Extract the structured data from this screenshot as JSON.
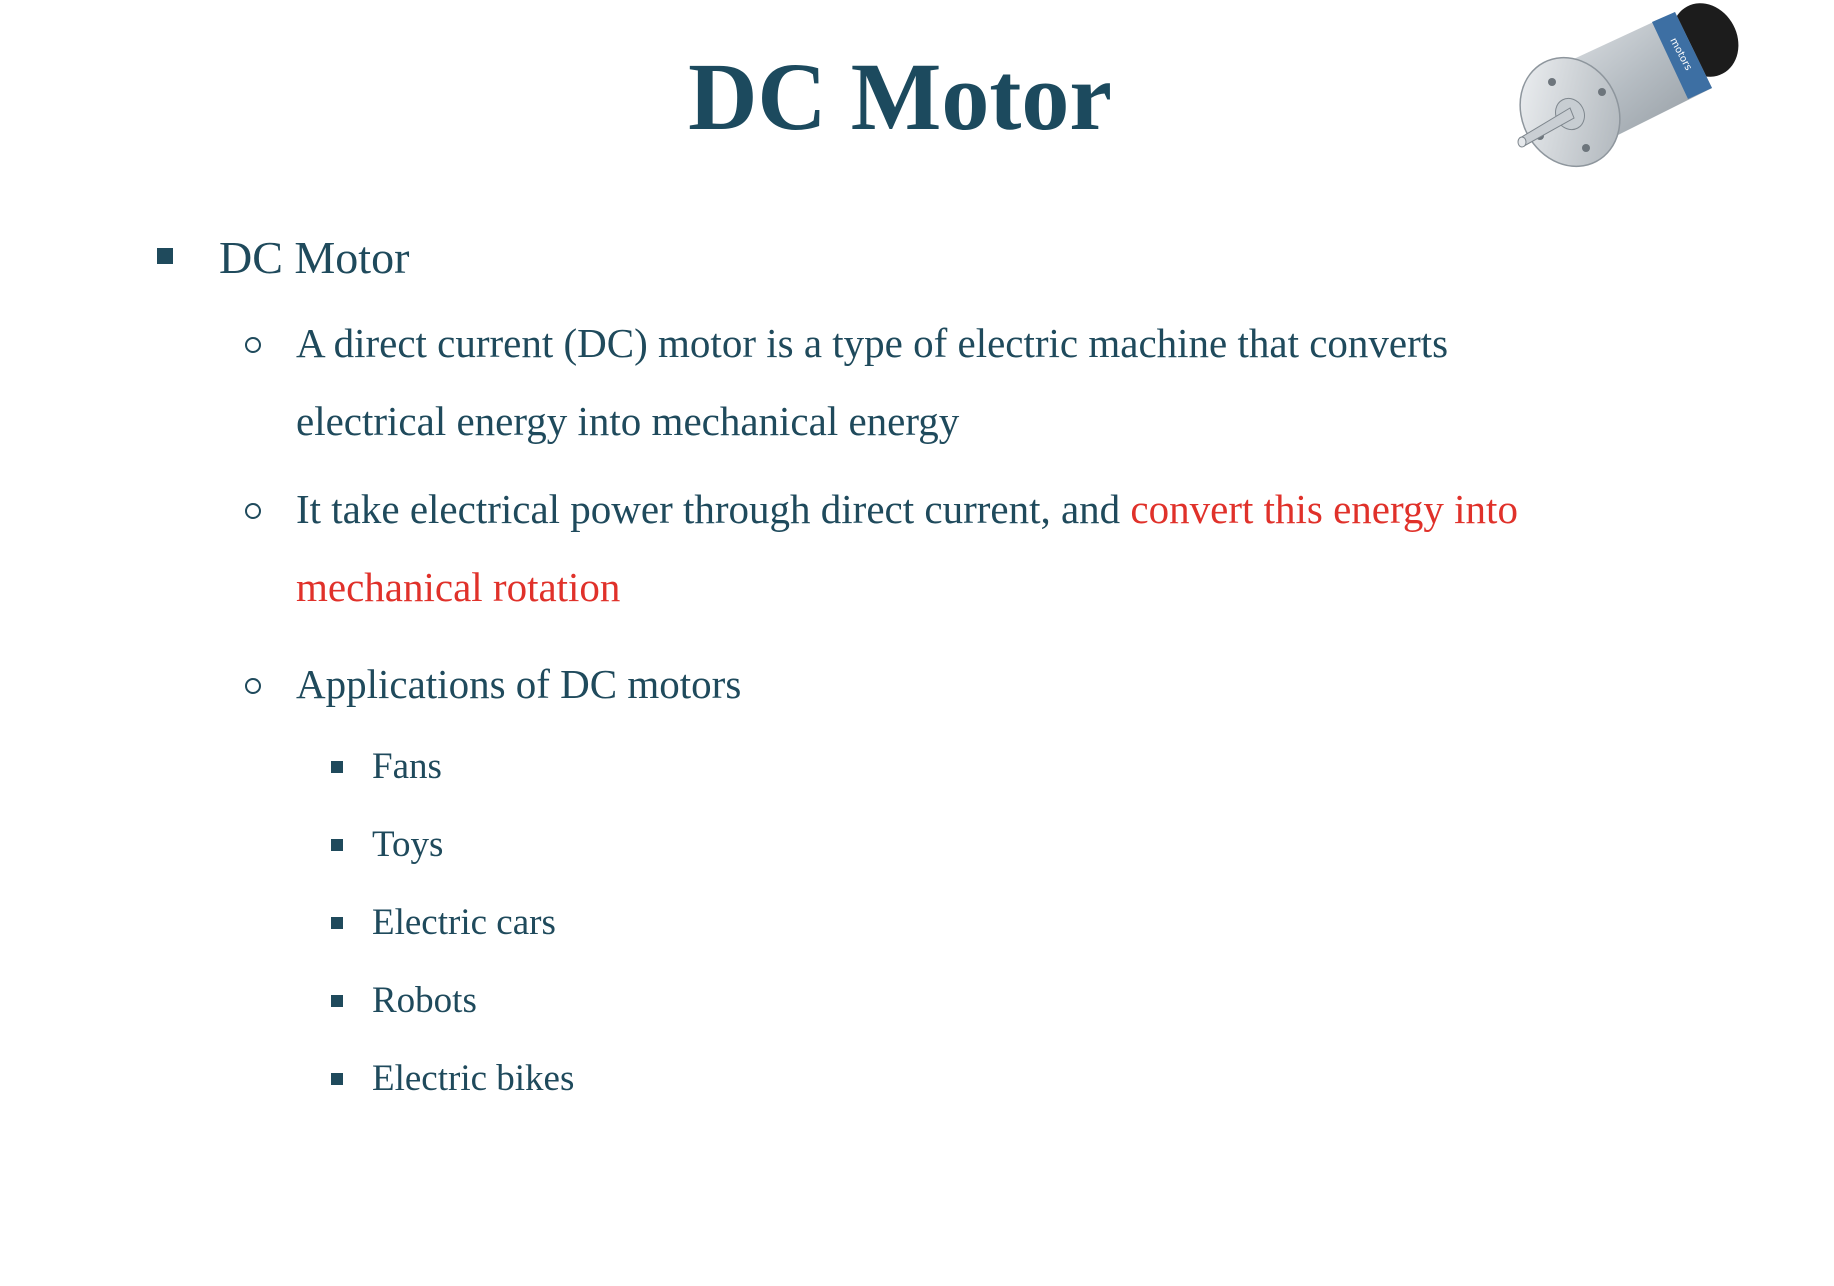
{
  "slide": {
    "title": "DC Motor",
    "image": {
      "icon": "dc-motor-photo",
      "label_text": "motors"
    },
    "bullet": {
      "label": "DC Motor",
      "items": [
        {
          "line1": "A direct current (DC) motor is a type of electric machine that converts",
          "line2": "electrical energy into mechanical energy"
        },
        {
          "line1_plain": "It take electrical power through direct current, and ",
          "line1_red": "convert this energy into",
          "line2_red": "mechanical rotation"
        },
        {
          "line1": "Applications of DC motors",
          "subitems": [
            "Fans",
            "Toys",
            "Electric cars",
            "Robots",
            "Electric bikes"
          ]
        }
      ]
    },
    "colors": {
      "title": "#1c4a5e",
      "text": "#1f4a5c",
      "highlight": "#e0312a"
    }
  }
}
